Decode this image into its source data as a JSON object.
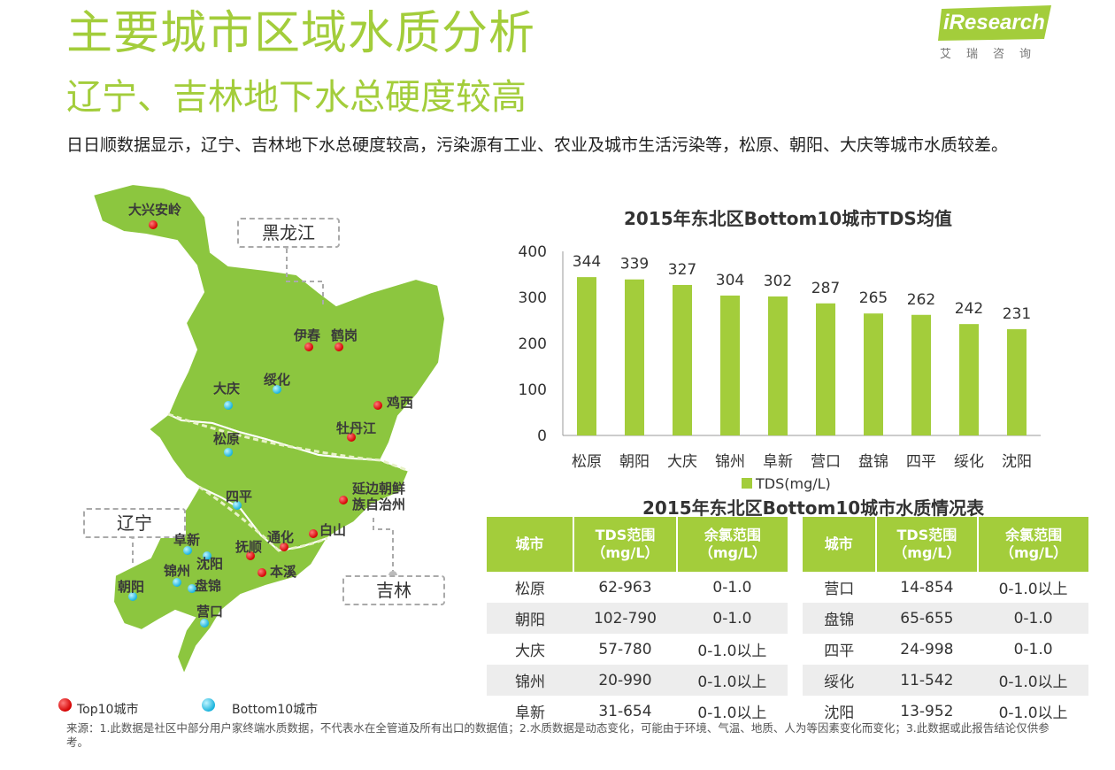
{
  "header": {
    "title": "主要城市区域水质分析",
    "subtitle": "辽宁、吉林地下水总硬度较高",
    "intro": "日日顺数据显示，辽宁、吉林地下水总硬度较高，污染源有工业、农业及城市生活污染等，松原、朝阳、大庆等城市水质较差。"
  },
  "logo": {
    "brand": "iResearch",
    "cn": "艾瑞咨询",
    "color": "#a3cd3b"
  },
  "map": {
    "fill_color": "#8cc63f",
    "region_labels": [
      "黑龙江",
      "辽宁",
      "吉林"
    ],
    "cities": [
      {
        "name": "大兴安岭",
        "type": "top10"
      },
      {
        "name": "伊春",
        "type": "top10"
      },
      {
        "name": "鹤岗",
        "type": "top10"
      },
      {
        "name": "大庆",
        "type": "bottom10"
      },
      {
        "name": "绥化",
        "type": "bottom10"
      },
      {
        "name": "鸡西",
        "type": "top10"
      },
      {
        "name": "牡丹江",
        "type": "top10"
      },
      {
        "name": "松原",
        "type": "bottom10"
      },
      {
        "name": "四平",
        "type": "bottom10"
      },
      {
        "name": "延边朝鲜族自治州",
        "type": "top10"
      },
      {
        "name": "阜新",
        "type": "bottom10"
      },
      {
        "name": "抚顺",
        "type": "top10"
      },
      {
        "name": "通化",
        "type": "top10"
      },
      {
        "name": "白山",
        "type": "top10"
      },
      {
        "name": "锦州",
        "type": "bottom10"
      },
      {
        "name": "沈阳",
        "type": "bottom10"
      },
      {
        "name": "本溪",
        "type": "top10"
      },
      {
        "name": "朝阳",
        "type": "bottom10"
      },
      {
        "name": "盘锦",
        "type": "bottom10"
      },
      {
        "name": "营口",
        "type": "bottom10"
      }
    ]
  },
  "legend": {
    "top10": "Top10城市",
    "bottom10": "Bottom10城市",
    "top10_color": "#d40000",
    "bottom10_color": "#19b3dc"
  },
  "chart_data": {
    "type": "bar",
    "title": "2015年东北区Bottom10城市TDS均值",
    "categories": [
      "松原",
      "朝阳",
      "大庆",
      "锦州",
      "阜新",
      "营口",
      "盘锦",
      "四平",
      "绥化",
      "沈阳"
    ],
    "series": [
      {
        "name": "TDS(mg/L)",
        "values": [
          344,
          339,
          327,
          304,
          302,
          287,
          265,
          262,
          242,
          231
        ],
        "color": "#a3cd3b"
      }
    ],
    "ylim": [
      0,
      400
    ],
    "yticks": [
      0,
      100,
      200,
      300,
      400
    ],
    "grid": false,
    "legend_position": "bottom"
  },
  "table": {
    "title": "2015年东北区Bottom10城市水质情况表",
    "headers": [
      "城市",
      "TDS范围\n（mg/L）",
      "余氯范围\n（mg/L）"
    ],
    "left_rows": [
      [
        "松原",
        "62-963",
        "0-1.0"
      ],
      [
        "朝阳",
        "102-790",
        "0-1.0"
      ],
      [
        "大庆",
        "57-780",
        "0-1.0以上"
      ],
      [
        "锦州",
        "20-990",
        "0-1.0以上"
      ],
      [
        "阜新",
        "31-654",
        "0-1.0以上"
      ]
    ],
    "right_rows": [
      [
        "营口",
        "14-854",
        "0-1.0以上"
      ],
      [
        "盘锦",
        "65-655",
        "0-1.0"
      ],
      [
        "四平",
        "24-998",
        "0-1.0"
      ],
      [
        "绥化",
        "11-542",
        "0-1.0以上"
      ],
      [
        "沈阳",
        "13-952",
        "0-1.0以上"
      ]
    ],
    "header_color": "#a3cd3b",
    "alt_row_color": "#ededed"
  },
  "source": "来源：1.此数据是社区中部分用户家终端水质数据，不代表水在全管道及所有出口的数据值；2.水质数据是动态变化，可能由于环境、气温、地质、人为等因素变化而变化；3.此数据或此报告结论仅供参考。"
}
